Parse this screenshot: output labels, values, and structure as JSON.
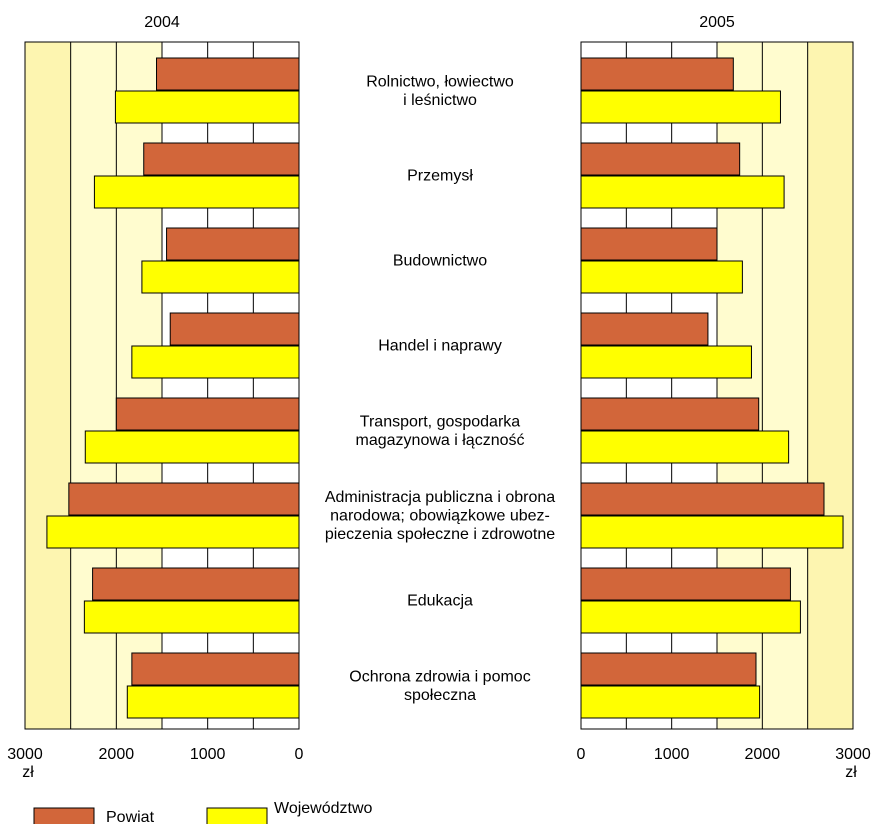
{
  "chart_data": {
    "type": "bar",
    "orientation": "horizontal",
    "layout": "back-to-back",
    "panels": [
      {
        "title": "2004",
        "direction": "right-to-left",
        "xlim": [
          0,
          3000
        ],
        "ticks": [
          "3000",
          "2000",
          "1000",
          "0"
        ],
        "unit": "zł"
      },
      {
        "title": "2005",
        "direction": "left-to-right",
        "xlim": [
          0,
          3000
        ],
        "ticks": [
          "0",
          "1000",
          "2000",
          "3000"
        ],
        "unit": "zł"
      }
    ],
    "categories": [
      [
        "Rolnictwo, łowiectwo",
        "i leśnictwo"
      ],
      [
        "Przemysł"
      ],
      [
        "Budownictwo"
      ],
      [
        "Handel i naprawy"
      ],
      [
        "Transport, gospodarka",
        "magazynowa i łączność"
      ],
      [
        "Administracja publiczna i obrona",
        "narodowa; obowiązkowe ubez-",
        "pieczenia społeczne i zdrowotne"
      ],
      [
        "Edukacja"
      ],
      [
        "Ochrona zdrowia i pomoc",
        "społeczna"
      ]
    ],
    "series": [
      {
        "name": "Powiat",
        "color": "#d2663a",
        "values_2004": [
          1560,
          1700,
          1450,
          1410,
          2000,
          2520,
          2260,
          1830
        ],
        "values_2005": [
          1680,
          1750,
          1500,
          1400,
          1960,
          2680,
          2310,
          1930
        ]
      },
      {
        "name": "Województwo",
        "color": "#ffff00",
        "values_2004": [
          2010,
          2240,
          1720,
          1830,
          2340,
          2760,
          2350,
          1880
        ],
        "values_2005": [
          2200,
          2240,
          1780,
          1880,
          2290,
          2890,
          2420,
          1970
        ]
      }
    ],
    "background_bands": [
      "#fdf5b0",
      "#fffccf"
    ],
    "grid": true,
    "legend_position": "bottom-left"
  }
}
